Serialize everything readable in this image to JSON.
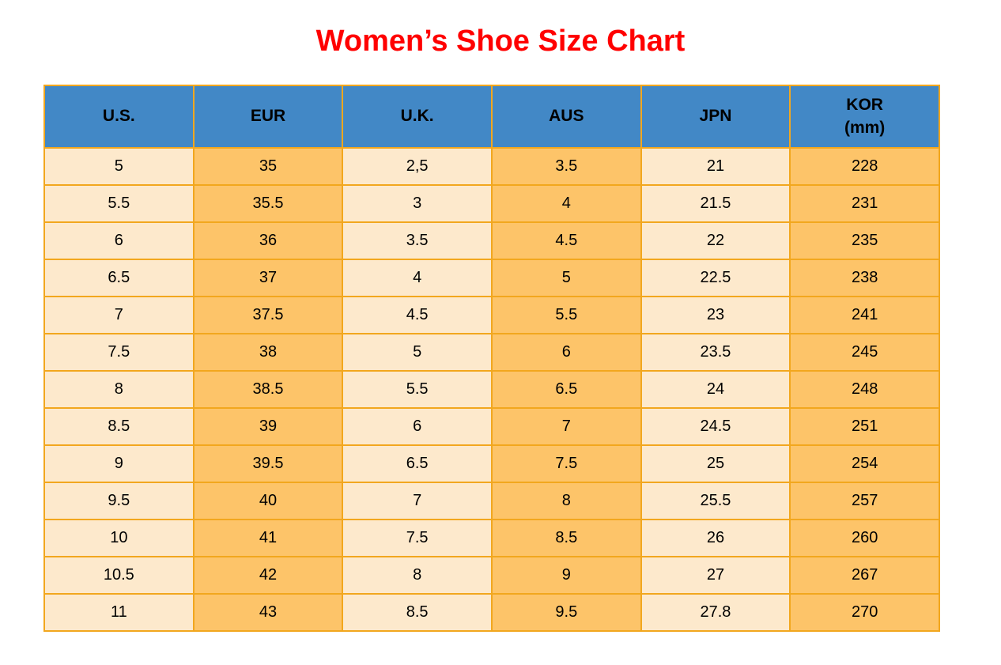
{
  "title": "Women’s Shoe Size Chart",
  "colors": {
    "title": "#ff0000",
    "header_bg": "#4288c6",
    "cell_light": "#fde9cc",
    "cell_orange": "#fdc469",
    "border": "#f2a71e",
    "text": "#000000"
  },
  "kor_header": {
    "line1": "KOR",
    "line2": "(mm)"
  },
  "chart_data": {
    "type": "table",
    "title": "Women’s Shoe Size Chart",
    "columns": [
      "U.S.",
      "EUR",
      "U.K.",
      "AUS",
      "JPN",
      "KOR (mm)"
    ],
    "rows": [
      [
        "5",
        "35",
        "2,5",
        "3.5",
        "21",
        "228"
      ],
      [
        "5.5",
        "35.5",
        "3",
        "4",
        "21.5",
        "231"
      ],
      [
        "6",
        "36",
        "3.5",
        "4.5",
        "22",
        "235"
      ],
      [
        "6.5",
        "37",
        "4",
        "5",
        "22.5",
        "238"
      ],
      [
        "7",
        "37.5",
        "4.5",
        "5.5",
        "23",
        "241"
      ],
      [
        "7.5",
        "38",
        "5",
        "6",
        "23.5",
        "245"
      ],
      [
        "8",
        "38.5",
        "5.5",
        "6.5",
        "24",
        "248"
      ],
      [
        "8.5",
        "39",
        "6",
        "7",
        "24.5",
        "251"
      ],
      [
        "9",
        "39.5",
        "6.5",
        "7.5",
        "25",
        "254"
      ],
      [
        "9.5",
        "40",
        "7",
        "8",
        "25.5",
        "257"
      ],
      [
        "10",
        "41",
        "7.5",
        "8.5",
        "26",
        "260"
      ],
      [
        "10.5",
        "42",
        "8",
        "9",
        "27",
        "267"
      ],
      [
        "11",
        "43",
        "8.5",
        "9.5",
        "27.8",
        "270"
      ]
    ]
  }
}
